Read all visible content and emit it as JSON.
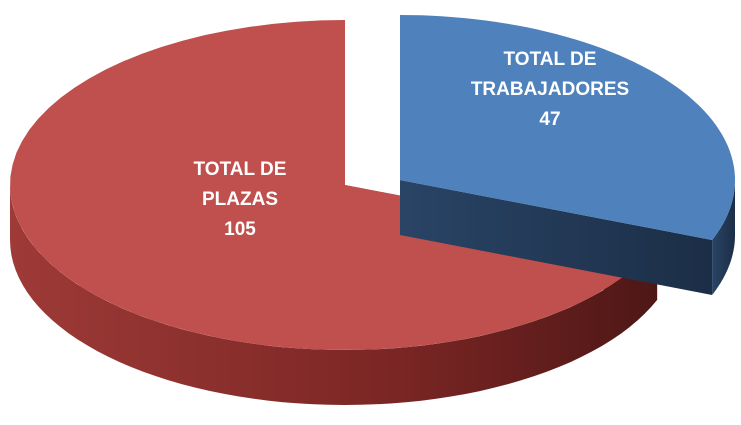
{
  "chart_data": {
    "type": "pie3d",
    "categories": [
      "TOTAL DE TRABAJADORES",
      "TOTAL DE PLAZAS"
    ],
    "values": [
      47,
      105
    ],
    "colors": [
      "#4f81bd",
      "#c0504d"
    ]
  }
}
